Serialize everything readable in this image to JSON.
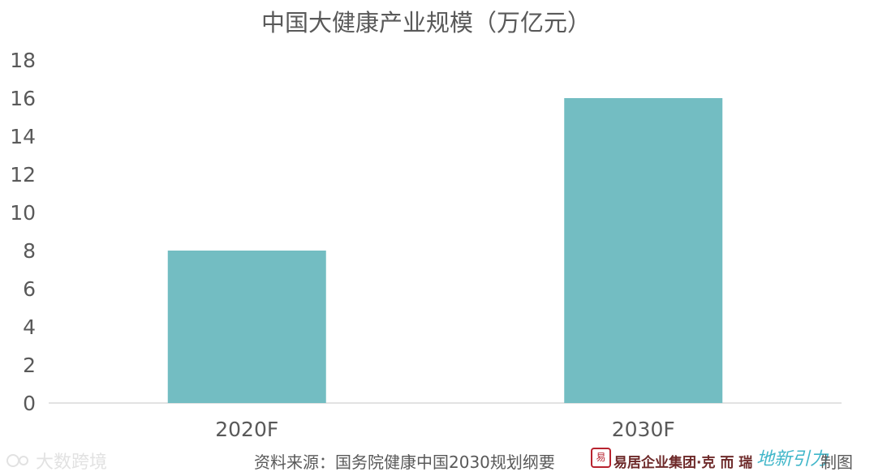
{
  "chart_data": {
    "type": "bar",
    "title": "中国大健康产业规模（万亿元）",
    "categories": [
      "2020F",
      "2030F"
    ],
    "values": [
      8,
      16
    ],
    "ylim": [
      0,
      18
    ],
    "yticks": [
      0,
      2,
      4,
      6,
      8,
      10,
      12,
      14,
      16,
      18
    ],
    "xlabel": "",
    "ylabel": "",
    "grid": false,
    "legend": "none",
    "bar_color": "#73bdc2"
  },
  "footer": {
    "watermark": "大数跨境",
    "source": "资料来源：国务院健康中国2030规划纲要",
    "seal_text": "易居",
    "brand_text": "易居企业集团·克 而 瑞",
    "brand2_text": "地新引力",
    "made_by": "制图"
  },
  "colors": {
    "axis": "#d9d9d9",
    "text": "#595959",
    "bar": "#73bdc2",
    "seal": "#b8232f"
  }
}
